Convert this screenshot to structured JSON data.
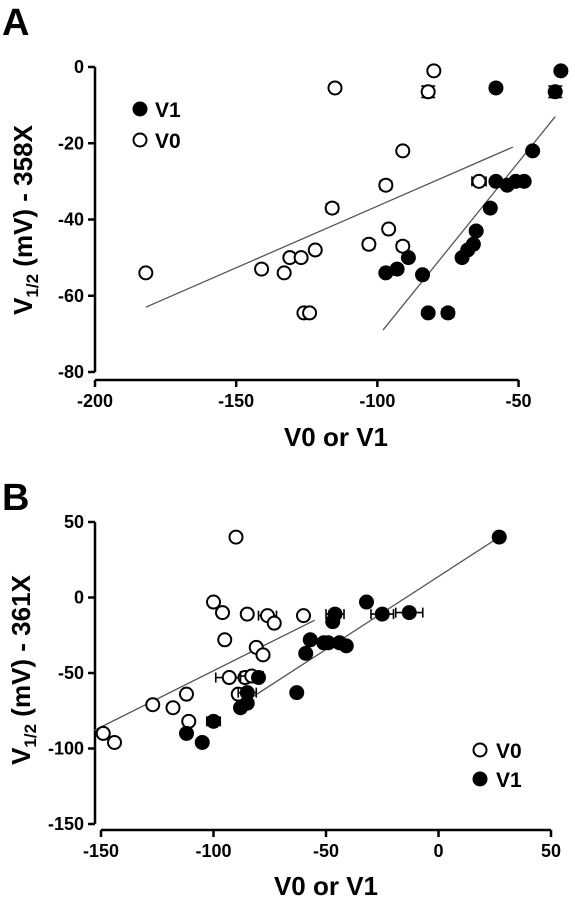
{
  "chart_data": [
    {
      "type": "scatter",
      "panel_label": "A",
      "xlabel": "V0 or V1",
      "ylabel_main": "V",
      "ylabel_sub": "1/2",
      "ylabel_rest": " (mV) - 358X",
      "xlim": [
        -200,
        -30
      ],
      "ylim": [
        -80,
        0
      ],
      "xticks": [
        -200,
        -150,
        -100,
        -50
      ],
      "yticks": [
        0,
        -20,
        -40,
        -60,
        -80
      ],
      "grid": false,
      "legend_position": "top-left",
      "legend_order": [
        "V1",
        "V0"
      ],
      "series": [
        {
          "name": "V0",
          "fill": "open",
          "points": [
            {
              "x": -182,
              "y": -54
            },
            {
              "x": -141,
              "y": -53
            },
            {
              "x": -133,
              "y": -54
            },
            {
              "x": -131,
              "y": -50
            },
            {
              "x": -127,
              "y": -50
            },
            {
              "x": -122,
              "y": -48
            },
            {
              "x": -126,
              "y": -64.5
            },
            {
              "x": -124,
              "y": -64.5
            },
            {
              "x": -116,
              "y": -37,
              "xerr": 2
            },
            {
              "x": -115,
              "y": -5.5
            },
            {
              "x": -103,
              "y": -46.5,
              "xerr": 2
            },
            {
              "x": -97,
              "y": -31,
              "xerr": 2
            },
            {
              "x": -96,
              "y": -42.5
            },
            {
              "x": -91,
              "y": -47,
              "xerr": 2
            },
            {
              "x": -91,
              "y": -22
            },
            {
              "x": -82,
              "y": -6.5,
              "yerr": 1.5
            },
            {
              "x": -80,
              "y": -1
            },
            {
              "x": -64,
              "y": -30,
              "xerr": 2.5
            }
          ],
          "fit": {
            "x": [
              -182,
              -52
            ],
            "y": [
              -63,
              -21
            ]
          }
        },
        {
          "name": "V1",
          "fill": "filled",
          "points": [
            {
              "x": -97,
              "y": -54
            },
            {
              "x": -93,
              "y": -53
            },
            {
              "x": -89,
              "y": -50
            },
            {
              "x": -84,
              "y": -54.5
            },
            {
              "x": -82,
              "y": -64.5
            },
            {
              "x": -75,
              "y": -64.5,
              "xerr": 2
            },
            {
              "x": -70,
              "y": -50
            },
            {
              "x": -68,
              "y": -48
            },
            {
              "x": -66,
              "y": -46.5
            },
            {
              "x": -65,
              "y": -43
            },
            {
              "x": -60,
              "y": -37
            },
            {
              "x": -58,
              "y": -30
            },
            {
              "x": -54,
              "y": -31
            },
            {
              "x": -51,
              "y": -30
            },
            {
              "x": -48,
              "y": -30
            },
            {
              "x": -45,
              "y": -22
            },
            {
              "x": -58,
              "y": -5.5
            },
            {
              "x": -37,
              "y": -6.5,
              "yerr": 1.5
            },
            {
              "x": -35,
              "y": -1
            }
          ],
          "fit": {
            "x": [
              -98,
              -37
            ],
            "y": [
              -69,
              -13
            ]
          }
        }
      ]
    },
    {
      "type": "scatter",
      "panel_label": "B",
      "xlabel": "V0 or V1",
      "ylabel_main": "V",
      "ylabel_sub": "1/2",
      "ylabel_rest": " (mV) - 361X",
      "xlim": [
        -150,
        50
      ],
      "ylim": [
        -150,
        50
      ],
      "xticks": [
        -150,
        -100,
        -50,
        0,
        50
      ],
      "yticks": [
        50,
        0,
        -50,
        -100,
        -150
      ],
      "grid": false,
      "legend_position": "bottom-right",
      "legend_order": [
        "V0",
        "V1"
      ],
      "series": [
        {
          "name": "V0",
          "fill": "open",
          "points": [
            {
              "x": -149,
              "y": -90
            },
            {
              "x": -144,
              "y": -96
            },
            {
              "x": -127,
              "y": -71
            },
            {
              "x": -118,
              "y": -73
            },
            {
              "x": -112,
              "y": -64
            },
            {
              "x": -111,
              "y": -82
            },
            {
              "x": -100,
              "y": -3
            },
            {
              "x": -96,
              "y": -10
            },
            {
              "x": -95,
              "y": -28
            },
            {
              "x": -93,
              "y": -53,
              "xerr": 6
            },
            {
              "x": -89,
              "y": -64
            },
            {
              "x": -86,
              "y": -53
            },
            {
              "x": -85,
              "y": -11
            },
            {
              "x": -83,
              "y": -52,
              "xerr": 5
            },
            {
              "x": -81,
              "y": -33
            },
            {
              "x": -78,
              "y": -38
            },
            {
              "x": -76,
              "y": -12,
              "xerr": 4
            },
            {
              "x": -73,
              "y": -17
            },
            {
              "x": -60,
              "y": -12
            },
            {
              "x": -90,
              "y": 40
            }
          ],
          "fit": {
            "x": [
              -153,
              -55
            ],
            "y": [
              -88,
              -15
            ]
          }
        },
        {
          "name": "V1",
          "fill": "filled",
          "points": [
            {
              "x": -112,
              "y": -90
            },
            {
              "x": -105,
              "y": -96
            },
            {
              "x": -100,
              "y": -82,
              "xerr": 3
            },
            {
              "x": -88,
              "y": -73
            },
            {
              "x": -85,
              "y": -70
            },
            {
              "x": -85,
              "y": -63,
              "xerr": 4
            },
            {
              "x": -80,
              "y": -53
            },
            {
              "x": -63,
              "y": -63
            },
            {
              "x": -59,
              "y": -37
            },
            {
              "x": -57,
              "y": -28
            },
            {
              "x": -51,
              "y": -30
            },
            {
              "x": -49,
              "y": -30
            },
            {
              "x": -47,
              "y": -16
            },
            {
              "x": -46,
              "y": -11,
              "xerr": 4
            },
            {
              "x": -44,
              "y": -30
            },
            {
              "x": -41,
              "y": -32
            },
            {
              "x": -32,
              "y": -3
            },
            {
              "x": -25,
              "y": -11,
              "xerr": 5
            },
            {
              "x": -13,
              "y": -10,
              "xerr": 6
            },
            {
              "x": 27,
              "y": 40,
              "xerr": 2
            }
          ],
          "fit": {
            "x": [
              -90,
              27
            ],
            "y": [
              -73,
              40
            ]
          }
        }
      ]
    }
  ],
  "colors": {
    "axis": "#000000",
    "marker_fill": "#000000",
    "open_fill": "#ffffff",
    "fit_line": "#555555"
  }
}
